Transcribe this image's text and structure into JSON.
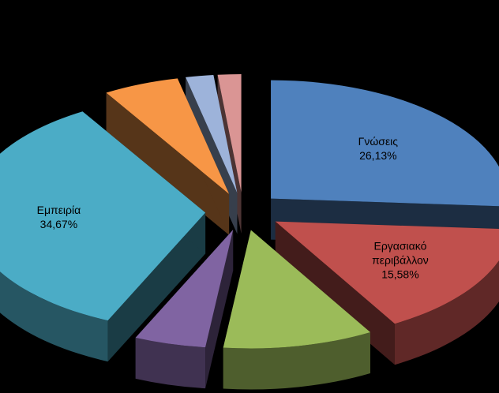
{
  "chart_data": {
    "type": "pie",
    "exploded": true,
    "style": "3d",
    "slices": [
      {
        "name": "Γνώσεις",
        "percent": "26,13%",
        "value": 26.13,
        "color": "#4F81BD",
        "label_lines": [
          "Γνώσεις",
          "26,13%"
        ]
      },
      {
        "name": "Εργασιακό περιβάλλον",
        "percent": "15,58%",
        "value": 15.58,
        "color": "#C0504D",
        "label_lines": [
          "Εργασιακό",
          "περιβάλλον",
          "15,58%"
        ]
      },
      {
        "name": "",
        "value": 10.3,
        "color": "#9BBB59",
        "label_lines": []
      },
      {
        "name": "",
        "value": 4.9,
        "color": "#8064A2",
        "label_lines": []
      },
      {
        "name": "Εμπειρία",
        "percent": "34,67%",
        "value": 34.67,
        "color": "#4BACC6",
        "label_lines": [
          "Εμπειρία",
          "34,67%"
        ]
      },
      {
        "name": "",
        "value": 5.2,
        "color": "#F79646",
        "label_lines": []
      },
      {
        "name": "",
        "value": 1.9,
        "color": "#9DB3DA",
        "label_lines": []
      },
      {
        "name": "",
        "value": 1.6,
        "color": "#DA9594",
        "label_lines": []
      }
    ]
  }
}
